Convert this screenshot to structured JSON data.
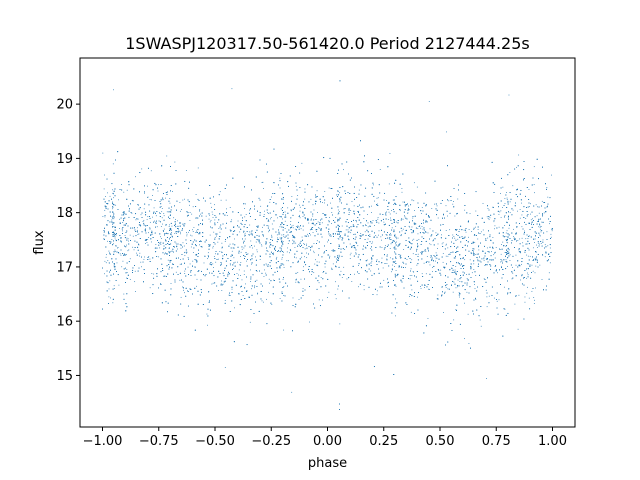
{
  "chart_data": {
    "type": "scatter",
    "title": "1SWASPJ120317.50-561420.0 Period 2127444.25s",
    "xlabel": "phase",
    "ylabel": "flux",
    "xlim": [
      -1.1,
      1.1
    ],
    "ylim": [
      14.05,
      20.85
    ],
    "x_ticks": [
      -1.0,
      -0.75,
      -0.5,
      -0.25,
      0.0,
      0.25,
      0.5,
      0.75,
      1.0
    ],
    "x_tick_labels": [
      "−1.00",
      "−0.75",
      "−0.50",
      "−0.25",
      "0.00",
      "0.25",
      "0.50",
      "0.75",
      "1.00"
    ],
    "y_ticks": [
      15,
      16,
      17,
      18,
      19,
      20
    ],
    "y_tick_labels": [
      "15",
      "16",
      "17",
      "18",
      "19",
      "20"
    ],
    "grid": false,
    "marker_color": "#1f77b4",
    "profile": {
      "description_points": [
        {
          "phase": -1.0,
          "median_flux": 17.6
        },
        {
          "phase": -0.9,
          "median_flux": 17.6
        },
        {
          "phase": -0.75,
          "median_flux": 17.6
        },
        {
          "phase": -0.5,
          "median_flux": 17.3
        },
        {
          "phase": -0.4,
          "median_flux": 17.1
        },
        {
          "phase": -0.25,
          "median_flux": 17.4
        },
        {
          "phase": 0.0,
          "median_flux": 17.6
        },
        {
          "phase": 0.1,
          "median_flux": 17.6
        },
        {
          "phase": 0.25,
          "median_flux": 17.6
        },
        {
          "phase": 0.5,
          "median_flux": 17.3
        },
        {
          "phase": 0.6,
          "median_flux": 17.1
        },
        {
          "phase": 0.75,
          "median_flux": 17.4
        },
        {
          "phase": 1.0,
          "median_flux": 17.6
        }
      ],
      "scatter_sigma": 0.55,
      "point_count": 9000,
      "vertical_streaks": [
        -0.7,
        0.3,
        0.8,
        -0.2,
        0.05,
        -0.95
      ]
    }
  }
}
